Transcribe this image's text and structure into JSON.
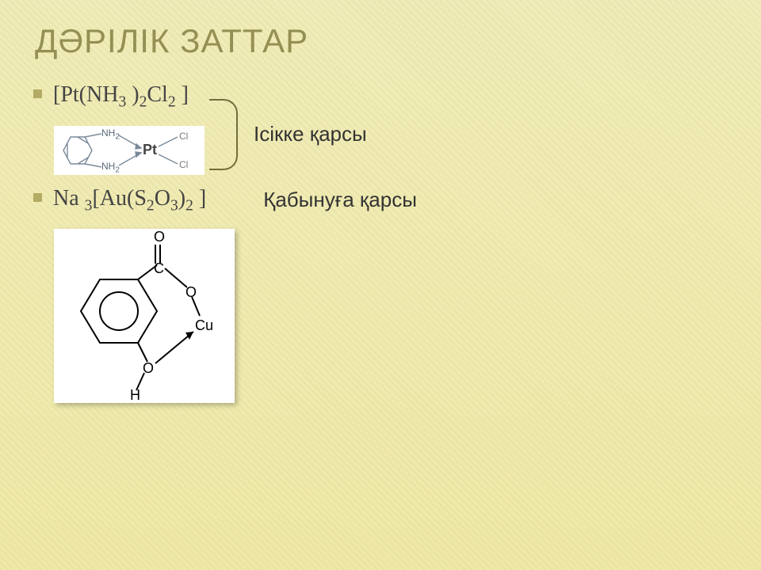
{
  "title": "ДӘРІЛІК ЗАТТАР",
  "item1": {
    "formula_html": "[Рt(NH<sub>3</sub> )<sub>2</sub>Cl<sub>2</sub> ]",
    "label": "Ісікке қарсы",
    "pt_diagram": {
      "nh2_top": "NH",
      "nh2_bot": "NH",
      "sub2": "2",
      "pt": "Pt",
      "cl": "Cl",
      "lines_color": "#7a8a9a"
    }
  },
  "item2": {
    "formula_html": "Na <sub>3</sub>[Au(S<sub>2</sub>O<sub>3</sub>)<sub>2</sub> ]",
    "label": "Қабынуға қарсы"
  },
  "cu_diagram": {
    "stroke": "#000000",
    "atoms": {
      "C": "C",
      "O": "O",
      "H": "H",
      "Cu": "Cu"
    }
  },
  "colors": {
    "title": "#958f53",
    "bullet": "#b3ab64",
    "text": "#333333",
    "bg_card": "#ffffff"
  }
}
